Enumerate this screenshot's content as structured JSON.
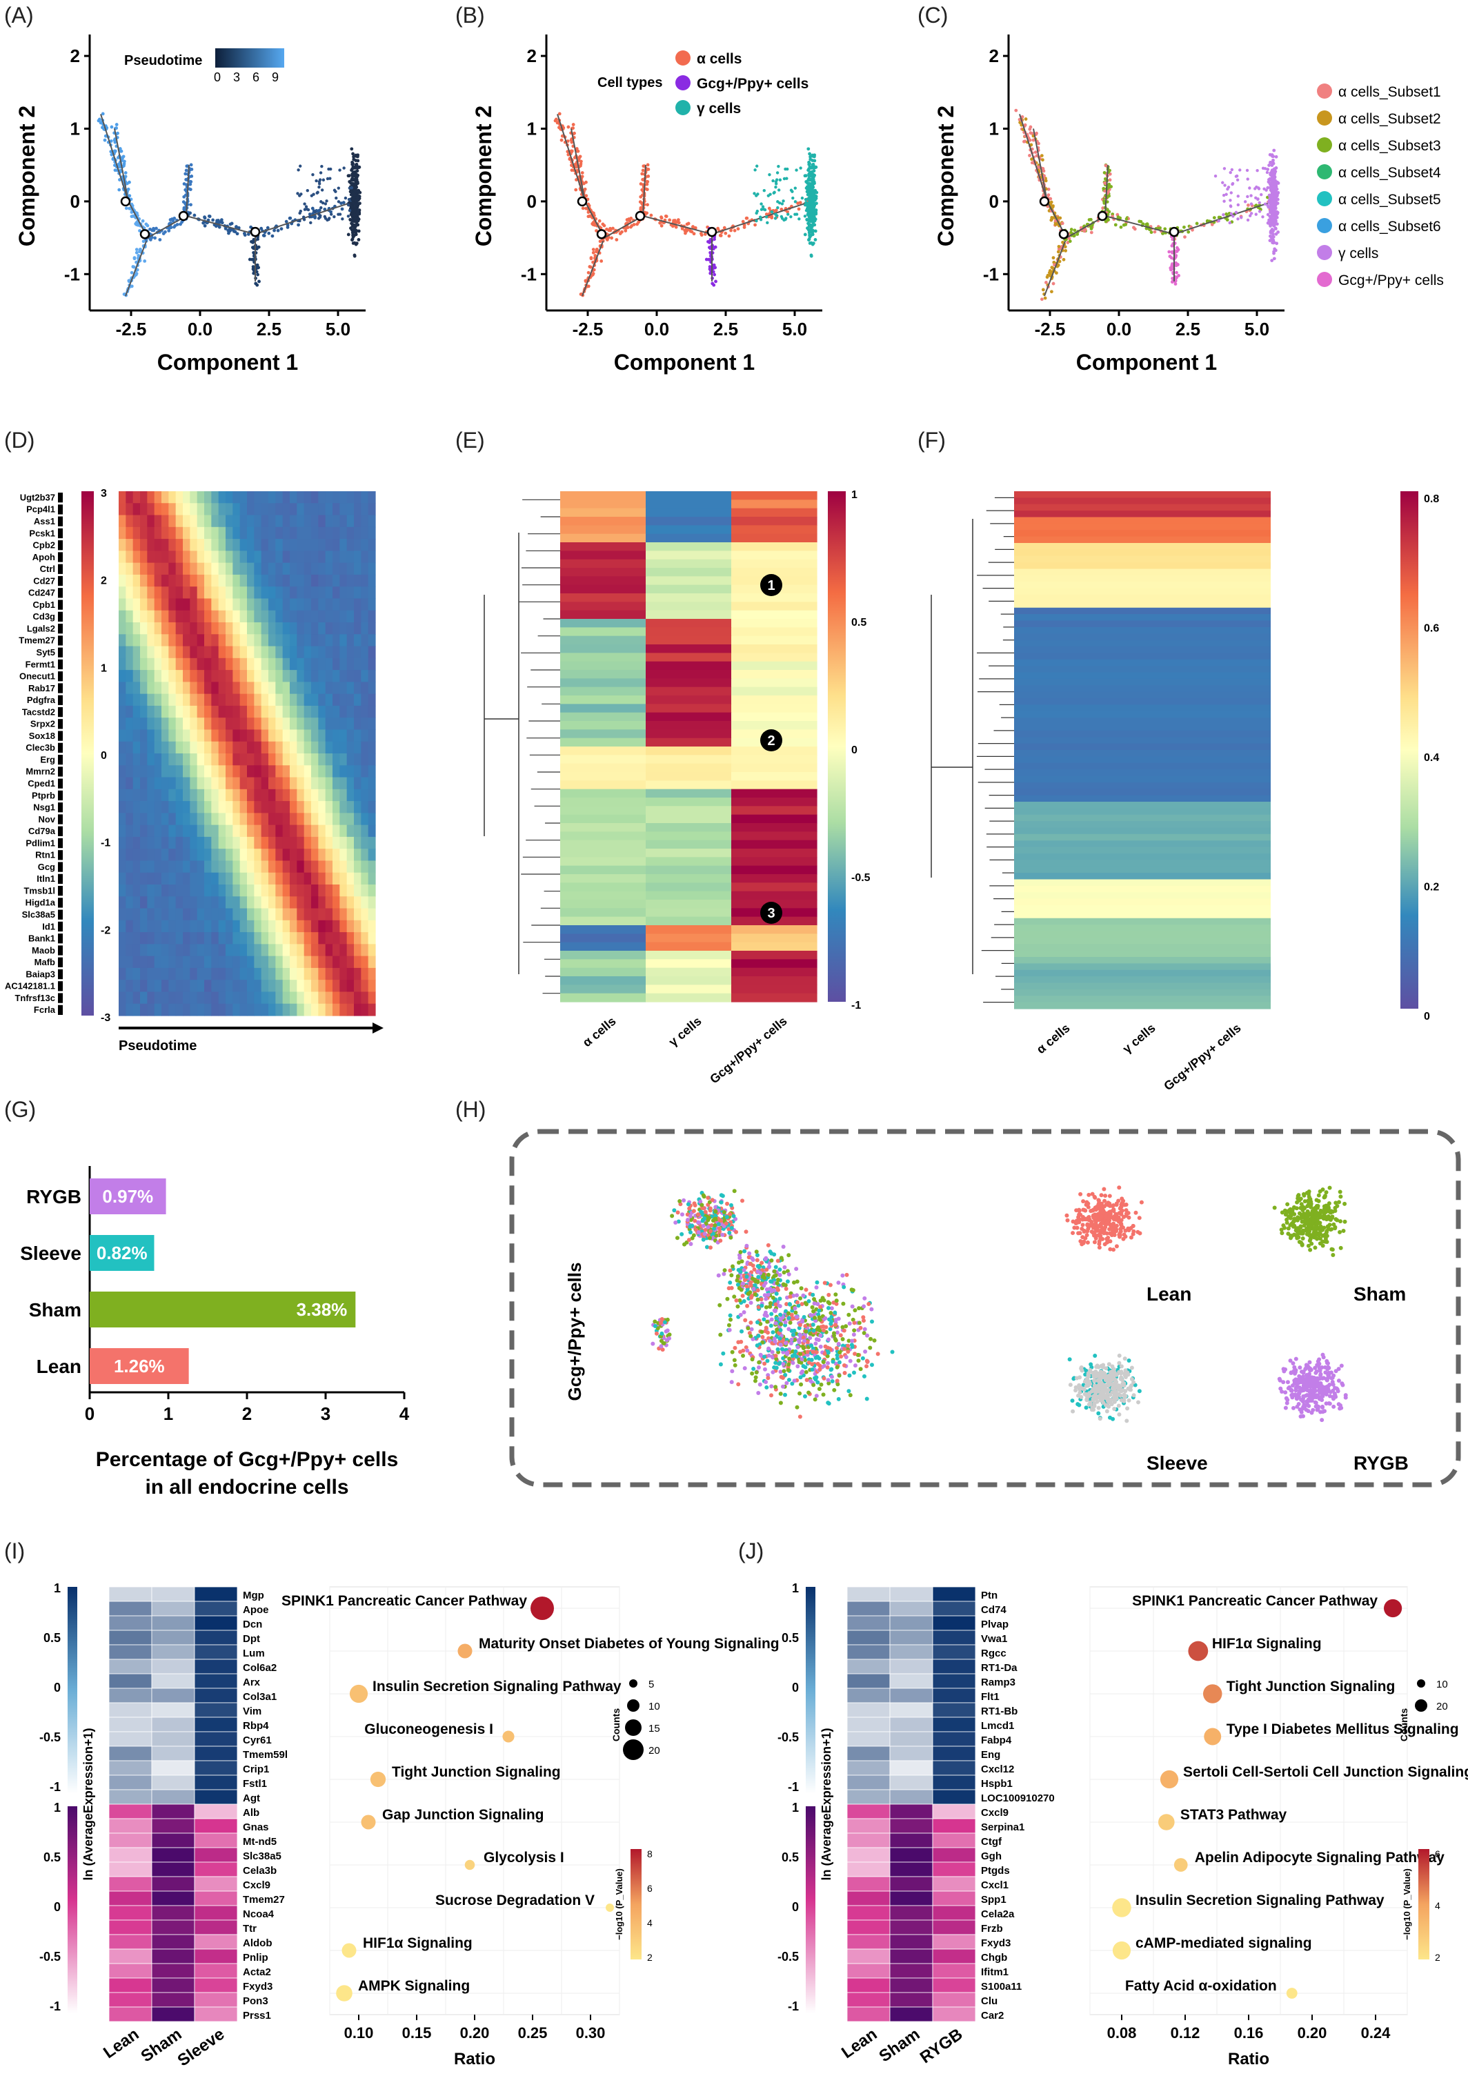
{
  "panels": {
    "A": "(A)",
    "B": "(B)",
    "C": "(C)",
    "D": "(D)",
    "E": "(E)",
    "F": "(F)",
    "G": "(G)",
    "H": "(H)",
    "I": "(I)",
    "J": "(J)"
  },
  "trajectory": {
    "xlabel": "Component 1",
    "ylabel": "Component 2",
    "xticks": [
      "-2.5",
      "0.0",
      "2.5",
      "5.0"
    ],
    "yticks": [
      "2",
      "1",
      "0",
      "-1"
    ],
    "A": {
      "legend_title": "Pseudotime",
      "scale_ticks": [
        "0",
        "3",
        "6",
        "9"
      ]
    },
    "B": {
      "legend_title": "Cell types",
      "items": [
        {
          "label": "α cells",
          "color": "#f26b4f"
        },
        {
          "label": "Gcg+/Ppy+ cells",
          "color": "#8a2be2"
        },
        {
          "label": "γ cells",
          "color": "#20b2aa"
        }
      ]
    },
    "C": {
      "items": [
        {
          "label": "α cells_Subset1",
          "color": "#f08080"
        },
        {
          "label": "α cells_Subset2",
          "color": "#c8961e"
        },
        {
          "label": "α cells_Subset3",
          "color": "#7fb020"
        },
        {
          "label": "α cells_Subset4",
          "color": "#2eb872"
        },
        {
          "label": "α cells_Subset5",
          "color": "#22c1c1"
        },
        {
          "label": "α cells_Subset6",
          "color": "#3aa0e0"
        },
        {
          "label": "γ cells",
          "color": "#c27ee8"
        },
        {
          "label": "Gcg+/Ppy+ cells",
          "color": "#e36ad0"
        }
      ]
    }
  },
  "D": {
    "genes": [
      "Ugt2b37",
      "Pcp4l1",
      "Ass1",
      "Pcsk1",
      "Cpb2",
      "Apoh",
      "Ctrl",
      "Cd27",
      "Cd247",
      "Cpb1",
      "Cd3g",
      "Lgals2",
      "Tmem27",
      "Syt5",
      "Fermt1",
      "Onecut1",
      "Rab17",
      "Pdgfra",
      "Tacstd2",
      "Srpx2",
      "Sox18",
      "Clec3b",
      "Erg",
      "Mmrn2",
      "Cped1",
      "Ptprb",
      "Nsg1",
      "Nov",
      "Cd79a",
      "Pdlim1",
      "Rtn1",
      "Gcg",
      "Itln1",
      "Tmsb1l",
      "Higd1a",
      "Slc38a5",
      "Id1",
      "Bank1",
      "Maob",
      "Mafb",
      "Baiap3",
      "AC142181.1",
      "Tnfrsf13c",
      "Fcrla"
    ],
    "scale": [
      "3",
      "2",
      "1",
      "0",
      "-1",
      "-2",
      "-3"
    ],
    "xlabel": "Pseudotime"
  },
  "E": {
    "columns": [
      "α cells",
      "γ cells",
      "Gcg+/Ppy+ cells"
    ],
    "scale": [
      "1",
      "0.5",
      "0",
      "-0.5",
      "-1"
    ],
    "markers": [
      "1",
      "2",
      "3"
    ]
  },
  "F": {
    "columns": [
      "α cells",
      "γ cells",
      "Gcg+/Ppy+ cells"
    ],
    "scale": [
      "0.8",
      "0.6",
      "0.4",
      "0.2",
      "0"
    ]
  },
  "G": {
    "bars": [
      {
        "label": "RYGB",
        "value": 0.97,
        "text": "0.97%",
        "color": "#c27ee8"
      },
      {
        "label": "Sleeve",
        "value": 0.82,
        "text": "0.82%",
        "color": "#22c1c1"
      },
      {
        "label": "Sham",
        "value": 3.38,
        "text": "3.38%",
        "color": "#7fb020"
      },
      {
        "label": "Lean",
        "value": 1.26,
        "text": "1.26%",
        "color": "#f4736b"
      }
    ],
    "xticks": [
      "0",
      "1",
      "2",
      "3",
      "4"
    ],
    "xlabel_line1": "Percentage of Gcg+/Ppy+ cells",
    "xlabel_line2": "in all endocrine cells"
  },
  "H": {
    "ylabel": "Gcg+/Ppy+ cells",
    "groups": [
      "Lean",
      "Sham",
      "Sleeve",
      "RYGB"
    ]
  },
  "I": {
    "genes": [
      "Mgp",
      "Apoe",
      "Dcn",
      "Dpt",
      "Lum",
      "Col6a2",
      "Arx",
      "Col3a1",
      "Vim",
      "Rbp4",
      "Cyr61",
      "Tmem59l",
      "Crip1",
      "Fstl1",
      "Agt",
      "Alb",
      "Gnas",
      "Mt-nd5",
      "Slc38a5",
      "Cela3b",
      "Cxcl9",
      "Tmem27",
      "Ncoa4",
      "Ttr",
      "Aldob",
      "Pnlip",
      "Acta2",
      "Fxyd3",
      "Pon3",
      "Prss1"
    ],
    "columns": [
      "Lean",
      "Sham",
      "Sleeve"
    ],
    "ylabel": "ln (AverageExpression+1)",
    "scale_top": [
      "1",
      "0.5",
      "0",
      "-0.5",
      "-1"
    ],
    "scale_bot": [
      "1",
      "0.5",
      "0",
      "-0.5",
      "-1"
    ],
    "pathways": [
      {
        "name": "SPINK1 Pancreatic Cancer Pathway",
        "ratio": 0.27,
        "size": 20,
        "p": 9
      },
      {
        "name": "Maturity Onset Diabetes of Young Signaling",
        "ratio": 0.19,
        "size": 10,
        "p": 5
      },
      {
        "name": "Insulin Secretion Signaling Pathway",
        "ratio": 0.08,
        "size": 14,
        "p": 4
      },
      {
        "name": "Gluconeogenesis I",
        "ratio": 0.235,
        "size": 7,
        "p": 4
      },
      {
        "name": "Tight Junction Signaling",
        "ratio": 0.1,
        "size": 11,
        "p": 4
      },
      {
        "name": "Gap Junction Signaling",
        "ratio": 0.09,
        "size": 10,
        "p": 4
      },
      {
        "name": "Glycolysis I",
        "ratio": 0.195,
        "size": 5,
        "p": 3
      },
      {
        "name": "Sucrose Degradation V",
        "ratio": 0.34,
        "size": 3,
        "p": 2
      },
      {
        "name": "HIF1α Signaling",
        "ratio": 0.07,
        "size": 10,
        "p": 2
      },
      {
        "name": "AMPK Signaling",
        "ratio": 0.065,
        "size": 12,
        "p": 2
      }
    ],
    "xticks": [
      "0.10",
      "0.15",
      "0.20",
      "0.25",
      "0.30"
    ],
    "xlabel": "Ratio",
    "size_legend": [
      "5",
      "10",
      "15",
      "20"
    ],
    "size_title": "Counts",
    "color_title": "−log10 (P_Value)",
    "color_ticks": [
      "8",
      "6",
      "4",
      "2"
    ]
  },
  "J": {
    "genes": [
      "Ptn",
      "Cd74",
      "Plvap",
      "Vwa1",
      "Rgcc",
      "RT1-Da",
      "Ramp3",
      "Flt1",
      "RT1-Bb",
      "Lmcd1",
      "Fabp4",
      "Eng",
      "Cxcl12",
      "Hspb1",
      "LOC100910270",
      "Cxcl9",
      "Serpina1",
      "Ctgf",
      "Ggh",
      "Ptgds",
      "Cxcl1",
      "Spp1",
      "Cela2a",
      "Frzb",
      "Fxyd3",
      "Chgb",
      "Ifitm1",
      "S100a11",
      "Clu",
      "Car2"
    ],
    "columns": [
      "Lean",
      "Sham",
      "RYGB"
    ],
    "ylabel": "ln (AverageExpression+1)",
    "scale_top": [
      "1",
      "0.5",
      "0",
      "-0.5",
      "-1"
    ],
    "scale_bot": [
      "1",
      "0.5",
      "0",
      "-0.5",
      "-1"
    ],
    "pathways": [
      {
        "name": "SPINK1 Pancreatic Cancer Pathway",
        "ratio": 0.27,
        "size": 14,
        "p": 7
      },
      {
        "name": "HIF1α Signaling",
        "ratio": 0.135,
        "size": 16,
        "p": 6
      },
      {
        "name": "Tight Junction Signaling",
        "ratio": 0.145,
        "size": 15,
        "p": 5
      },
      {
        "name": "Type I Diabetes Mellitus Signaling",
        "ratio": 0.145,
        "size": 13,
        "p": 4
      },
      {
        "name": "Sertoli Cell-Sertoli Cell Junction Signaling",
        "ratio": 0.115,
        "size": 14,
        "p": 4
      },
      {
        "name": "STAT3 Pathway",
        "ratio": 0.113,
        "size": 12,
        "p": 3
      },
      {
        "name": "Apelin Adipocyte Signaling Pathway",
        "ratio": 0.123,
        "size": 9,
        "p": 3
      },
      {
        "name": "Insulin Secretion Signaling Pathway",
        "ratio": 0.082,
        "size": 15,
        "p": 2
      },
      {
        "name": "cAMP-mediated signaling",
        "ratio": 0.082,
        "size": 14,
        "p": 2
      },
      {
        "name": "Fatty Acid α-oxidation",
        "ratio": 0.2,
        "size": 6,
        "p": 2
      }
    ],
    "xticks": [
      "0.08",
      "0.12",
      "0.16",
      "0.20",
      "0.24"
    ],
    "xlabel": "Ratio",
    "size_legend": [
      "10",
      "20"
    ],
    "size_title": "Counts",
    "color_title": "−log10 (P_Value)",
    "color_ticks": [
      "6",
      "4",
      "2"
    ]
  },
  "chart_data": [
    {
      "type": "bar",
      "orientation": "horizontal",
      "categories": [
        "RYGB",
        "Sleeve",
        "Sham",
        "Lean"
      ],
      "values": [
        0.97,
        0.82,
        3.38,
        1.26
      ],
      "xlim": [
        0,
        4
      ],
      "xlabel": "Percentage of Gcg+/Ppy+ cells in all endocrine cells"
    },
    {
      "type": "scatter",
      "title": "",
      "x": [
        0.27,
        0.19,
        0.08,
        0.235,
        0.1,
        0.09,
        0.195,
        0.34,
        0.07,
        0.065
      ],
      "categories": [
        "SPINK1 Pancreatic Cancer Pathway",
        "Maturity Onset Diabetes of Young Signaling",
        "Insulin Secretion Signaling Pathway",
        "Gluconeogenesis I",
        "Tight Junction Signaling",
        "Gap Junction Signaling",
        "Glycolysis I",
        "Sucrose Degradation V",
        "HIF1α Signaling",
        "AMPK Signaling"
      ],
      "xlabel": "Ratio"
    },
    {
      "type": "scatter",
      "title": "",
      "x": [
        0.27,
        0.135,
        0.145,
        0.145,
        0.115,
        0.113,
        0.123,
        0.082,
        0.082,
        0.2
      ],
      "categories": [
        "SPINK1 Pancreatic Cancer Pathway",
        "HIF1α Signaling",
        "Tight Junction Signaling",
        "Type I Diabetes Mellitus Signaling",
        "Sertoli Cell-Sertoli Cell Junction Signaling",
        "STAT3 Pathway",
        "Apelin Adipocyte Signaling Pathway",
        "Insulin Secretion Signaling Pathway",
        "cAMP-mediated signaling",
        "Fatty Acid α-oxidation"
      ],
      "xlabel": "Ratio"
    }
  ]
}
